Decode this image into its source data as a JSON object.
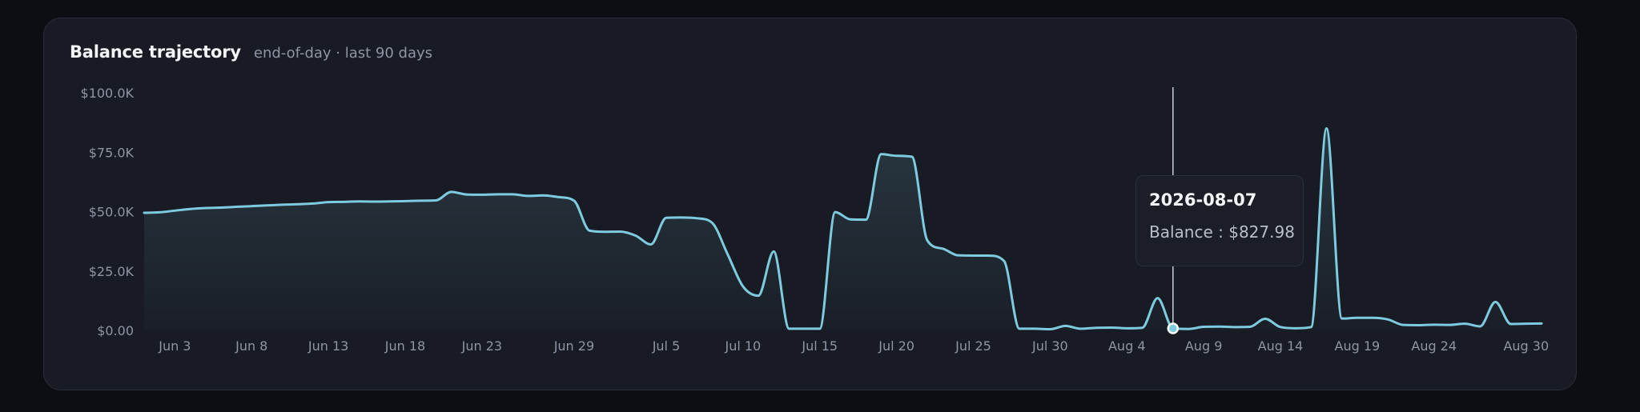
{
  "header": {
    "title": "Balance trajectory",
    "subtitle": "end-of-day · last 90 days"
  },
  "colors": {
    "line": "#7ecbdf",
    "background": "#181b23",
    "text_muted": "#8e95a3"
  },
  "tooltip": {
    "date": "2026-08-07",
    "label": "Balance",
    "separator": " : ",
    "value": "$827.98"
  },
  "chart_data": {
    "type": "area",
    "title": "Balance trajectory",
    "subtitle": "end-of-day · last 90 days",
    "ylim": [
      0,
      100000
    ],
    "grid": false,
    "y_ticks": [
      {
        "value": 0,
        "label": "$0.00"
      },
      {
        "value": 25000,
        "label": "$25.0K"
      },
      {
        "value": 50000,
        "label": "$50.0K"
      },
      {
        "value": 75000,
        "label": "$75.0K"
      },
      {
        "value": 100000,
        "label": "$100.0K"
      }
    ],
    "x_ticks": [
      {
        "date": "2026-06-03",
        "label": "Jun 3"
      },
      {
        "date": "2026-06-08",
        "label": "Jun 8"
      },
      {
        "date": "2026-06-13",
        "label": "Jun 13"
      },
      {
        "date": "2026-06-18",
        "label": "Jun 18"
      },
      {
        "date": "2026-06-23",
        "label": "Jun 23"
      },
      {
        "date": "2026-06-29",
        "label": "Jun 29"
      },
      {
        "date": "2026-07-05",
        "label": "Jul 5"
      },
      {
        "date": "2026-07-10",
        "label": "Jul 10"
      },
      {
        "date": "2026-07-15",
        "label": "Jul 15"
      },
      {
        "date": "2026-07-20",
        "label": "Jul 20"
      },
      {
        "date": "2026-07-25",
        "label": "Jul 25"
      },
      {
        "date": "2026-07-30",
        "label": "Jul 30"
      },
      {
        "date": "2026-08-04",
        "label": "Aug 4"
      },
      {
        "date": "2026-08-09",
        "label": "Aug 9"
      },
      {
        "date": "2026-08-14",
        "label": "Aug 14"
      },
      {
        "date": "2026-08-19",
        "label": "Aug 19"
      },
      {
        "date": "2026-08-24",
        "label": "Aug 24"
      },
      {
        "date": "2026-08-30",
        "label": "Aug 30"
      }
    ],
    "series": [
      {
        "values": [
          {
            "x": "2026-06-01",
            "y": 49500
          },
          {
            "x": "2026-06-02",
            "y": 49700
          },
          {
            "x": "2026-06-03",
            "y": 50400
          },
          {
            "x": "2026-06-04",
            "y": 51100
          },
          {
            "x": "2026-06-05",
            "y": 51500
          },
          {
            "x": "2026-06-06",
            "y": 51700
          },
          {
            "x": "2026-06-07",
            "y": 52000
          },
          {
            "x": "2026-06-08",
            "y": 52300
          },
          {
            "x": "2026-06-09",
            "y": 52600
          },
          {
            "x": "2026-06-10",
            "y": 52900
          },
          {
            "x": "2026-06-11",
            "y": 53100
          },
          {
            "x": "2026-06-12",
            "y": 53400
          },
          {
            "x": "2026-06-13",
            "y": 54000
          },
          {
            "x": "2026-06-14",
            "y": 54100
          },
          {
            "x": "2026-06-15",
            "y": 54300
          },
          {
            "x": "2026-06-16",
            "y": 54200
          },
          {
            "x": "2026-06-17",
            "y": 54300
          },
          {
            "x": "2026-06-18",
            "y": 54400
          },
          {
            "x": "2026-06-19",
            "y": 54600
          },
          {
            "x": "2026-06-20",
            "y": 54700
          },
          {
            "x": "2026-06-21",
            "y": 58300
          },
          {
            "x": "2026-06-22",
            "y": 57200
          },
          {
            "x": "2026-06-23",
            "y": 57100
          },
          {
            "x": "2026-06-24",
            "y": 57300
          },
          {
            "x": "2026-06-25",
            "y": 57300
          },
          {
            "x": "2026-06-26",
            "y": 56600
          },
          {
            "x": "2026-06-27",
            "y": 56800
          },
          {
            "x": "2026-06-28",
            "y": 56100
          },
          {
            "x": "2026-06-29",
            "y": 54600
          },
          {
            "x": "2026-06-30",
            "y": 42000
          },
          {
            "x": "2026-07-01",
            "y": 41500
          },
          {
            "x": "2026-07-02",
            "y": 41600
          },
          {
            "x": "2026-07-03",
            "y": 39900
          },
          {
            "x": "2026-07-04",
            "y": 36200
          },
          {
            "x": "2026-07-05",
            "y": 47400
          },
          {
            "x": "2026-07-06",
            "y": 47500
          },
          {
            "x": "2026-07-07",
            "y": 47200
          },
          {
            "x": "2026-07-08",
            "y": 45200
          },
          {
            "x": "2026-07-09",
            "y": 32000
          },
          {
            "x": "2026-07-10",
            "y": 18500
          },
          {
            "x": "2026-07-11",
            "y": 14600
          },
          {
            "x": "2026-07-12",
            "y": 33200
          },
          {
            "x": "2026-07-13",
            "y": 700
          },
          {
            "x": "2026-07-14",
            "y": 700
          },
          {
            "x": "2026-07-15",
            "y": 700
          },
          {
            "x": "2026-07-16",
            "y": 49800
          },
          {
            "x": "2026-07-17",
            "y": 46700
          },
          {
            "x": "2026-07-18",
            "y": 46600
          },
          {
            "x": "2026-07-19",
            "y": 74200
          },
          {
            "x": "2026-07-20",
            "y": 73500
          },
          {
            "x": "2026-07-21",
            "y": 73100
          },
          {
            "x": "2026-07-22",
            "y": 37900
          },
          {
            "x": "2026-07-23",
            "y": 34400
          },
          {
            "x": "2026-07-24",
            "y": 31600
          },
          {
            "x": "2026-07-25",
            "y": 31500
          },
          {
            "x": "2026-07-26",
            "y": 31500
          },
          {
            "x": "2026-07-27",
            "y": 29200
          },
          {
            "x": "2026-07-28",
            "y": 700
          },
          {
            "x": "2026-07-29",
            "y": 700
          },
          {
            "x": "2026-07-30",
            "y": 500
          },
          {
            "x": "2026-07-31",
            "y": 1900
          },
          {
            "x": "2026-08-01",
            "y": 700
          },
          {
            "x": "2026-08-02",
            "y": 1100
          },
          {
            "x": "2026-08-03",
            "y": 1200
          },
          {
            "x": "2026-08-04",
            "y": 900
          },
          {
            "x": "2026-08-05",
            "y": 1100
          },
          {
            "x": "2026-08-06",
            "y": 13600
          },
          {
            "x": "2026-08-07",
            "y": 827.98
          },
          {
            "x": "2026-08-08",
            "y": 600
          },
          {
            "x": "2026-08-09",
            "y": 1500
          },
          {
            "x": "2026-08-10",
            "y": 1600
          },
          {
            "x": "2026-08-11",
            "y": 1400
          },
          {
            "x": "2026-08-12",
            "y": 1500
          },
          {
            "x": "2026-08-13",
            "y": 4900
          },
          {
            "x": "2026-08-14",
            "y": 1400
          },
          {
            "x": "2026-08-15",
            "y": 900
          },
          {
            "x": "2026-08-16",
            "y": 1400
          },
          {
            "x": "2026-08-17",
            "y": 85000
          },
          {
            "x": "2026-08-18",
            "y": 5000
          },
          {
            "x": "2026-08-19",
            "y": 5300
          },
          {
            "x": "2026-08-20",
            "y": 5300
          },
          {
            "x": "2026-08-21",
            "y": 4600
          },
          {
            "x": "2026-08-22",
            "y": 2300
          },
          {
            "x": "2026-08-23",
            "y": 2200
          },
          {
            "x": "2026-08-24",
            "y": 2400
          },
          {
            "x": "2026-08-25",
            "y": 2300
          },
          {
            "x": "2026-08-26",
            "y": 2800
          },
          {
            "x": "2026-08-27",
            "y": 1700
          },
          {
            "x": "2026-08-28",
            "y": 12000
          },
          {
            "x": "2026-08-29",
            "y": 2700
          },
          {
            "x": "2026-08-30",
            "y": 2800
          },
          {
            "x": "2026-08-31",
            "y": 2900
          }
        ]
      }
    ],
    "highlight": {
      "x": "2026-08-07",
      "y": 827.98
    }
  }
}
